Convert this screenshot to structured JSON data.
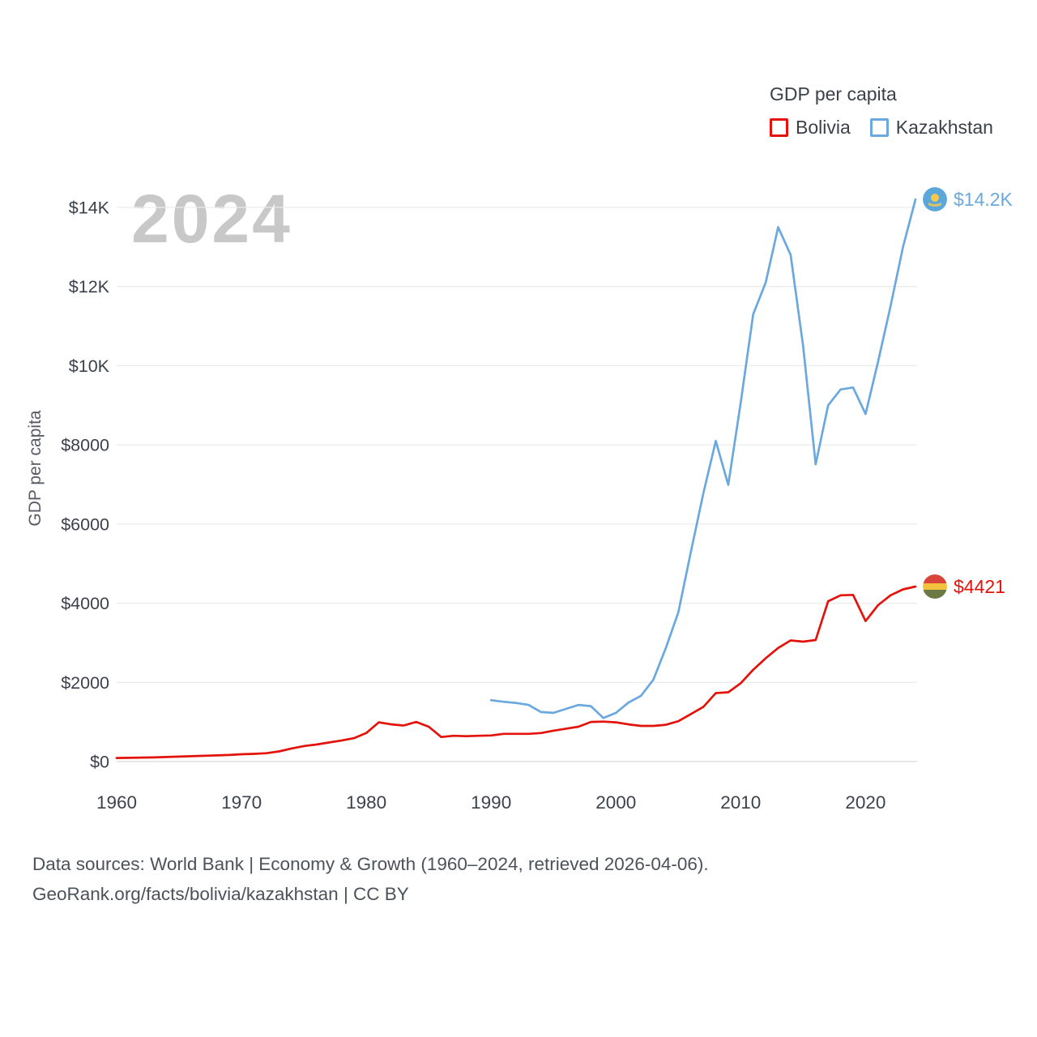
{
  "legend": {
    "title": "GDP per capita",
    "series": [
      {
        "label": "Bolivia",
        "color": "#e3120b"
      },
      {
        "label": "Kazakhstan",
        "color": "#6aa8de"
      }
    ]
  },
  "watermark": "2024",
  "axes": {
    "y_label": "GDP per capita",
    "y_ticks": [
      {
        "value": 0,
        "label": "$0"
      },
      {
        "value": 2000,
        "label": "$2000"
      },
      {
        "value": 4000,
        "label": "$4000"
      },
      {
        "value": 6000,
        "label": "$6000"
      },
      {
        "value": 8000,
        "label": "$8000"
      },
      {
        "value": 10000,
        "label": "$10K"
      },
      {
        "value": 12000,
        "label": "$12K"
      },
      {
        "value": 14000,
        "label": "$14K"
      }
    ],
    "x_ticks": [
      1960,
      1970,
      1980,
      1990,
      2000,
      2010,
      2020
    ],
    "x_range": [
      1960,
      2024
    ],
    "y_range": [
      0,
      14000
    ],
    "grid": true
  },
  "chart_data": {
    "type": "line",
    "title": "GDP per capita",
    "xlabel": "",
    "ylabel": "GDP per capita",
    "x": [
      1960,
      1961,
      1962,
      1963,
      1964,
      1965,
      1966,
      1967,
      1968,
      1969,
      1970,
      1971,
      1972,
      1973,
      1974,
      1975,
      1976,
      1977,
      1978,
      1979,
      1980,
      1981,
      1982,
      1983,
      1984,
      1985,
      1986,
      1987,
      1988,
      1989,
      1990,
      1991,
      1992,
      1993,
      1994,
      1995,
      1996,
      1997,
      1998,
      1999,
      2000,
      2001,
      2002,
      2003,
      2004,
      2005,
      2006,
      2007,
      2008,
      2009,
      2010,
      2011,
      2012,
      2013,
      2014,
      2015,
      2016,
      2017,
      2018,
      2019,
      2020,
      2021,
      2022,
      2023,
      2024
    ],
    "series": [
      {
        "name": "Bolivia",
        "color": "#e3120b",
        "end_label": "$4421",
        "values": [
          90,
          95,
          100,
          105,
          115,
          125,
          135,
          145,
          155,
          165,
          185,
          195,
          210,
          255,
          330,
          390,
          430,
          480,
          530,
          590,
          720,
          990,
          940,
          910,
          1000,
          880,
          620,
          650,
          640,
          650,
          660,
          700,
          700,
          700,
          720,
          780,
          830,
          880,
          1000,
          1010,
          990,
          940,
          900,
          900,
          930,
          1020,
          1200,
          1380,
          1730,
          1750,
          1980,
          2320,
          2610,
          2870,
          3060,
          3030,
          3070,
          4050,
          4200,
          4210,
          3550,
          3950,
          4200,
          4350,
          4421
        ]
      },
      {
        "name": "Kazakhstan",
        "color": "#6aa8de",
        "end_label": "$14.2K",
        "values": [
          null,
          null,
          null,
          null,
          null,
          null,
          null,
          null,
          null,
          null,
          null,
          null,
          null,
          null,
          null,
          null,
          null,
          null,
          null,
          null,
          null,
          null,
          null,
          null,
          null,
          null,
          null,
          null,
          null,
          null,
          1550,
          1510,
          1480,
          1430,
          1250,
          1230,
          1330,
          1430,
          1400,
          1100,
          1230,
          1490,
          1660,
          2070,
          2870,
          3770,
          5290,
          6770,
          8100,
          6990,
          9070,
          11300,
          12100,
          13500,
          12800,
          10500,
          7510,
          9000,
          9400,
          9450,
          8780,
          10100,
          11500,
          13000,
          14200
        ]
      }
    ]
  },
  "footer": {
    "line1": "Data sources: World Bank | Economy & Growth (1960–2024, retrieved 2026-04-06).",
    "line2": "GeoRank.org/facts/bolivia/kazakhstan | CC BY"
  }
}
